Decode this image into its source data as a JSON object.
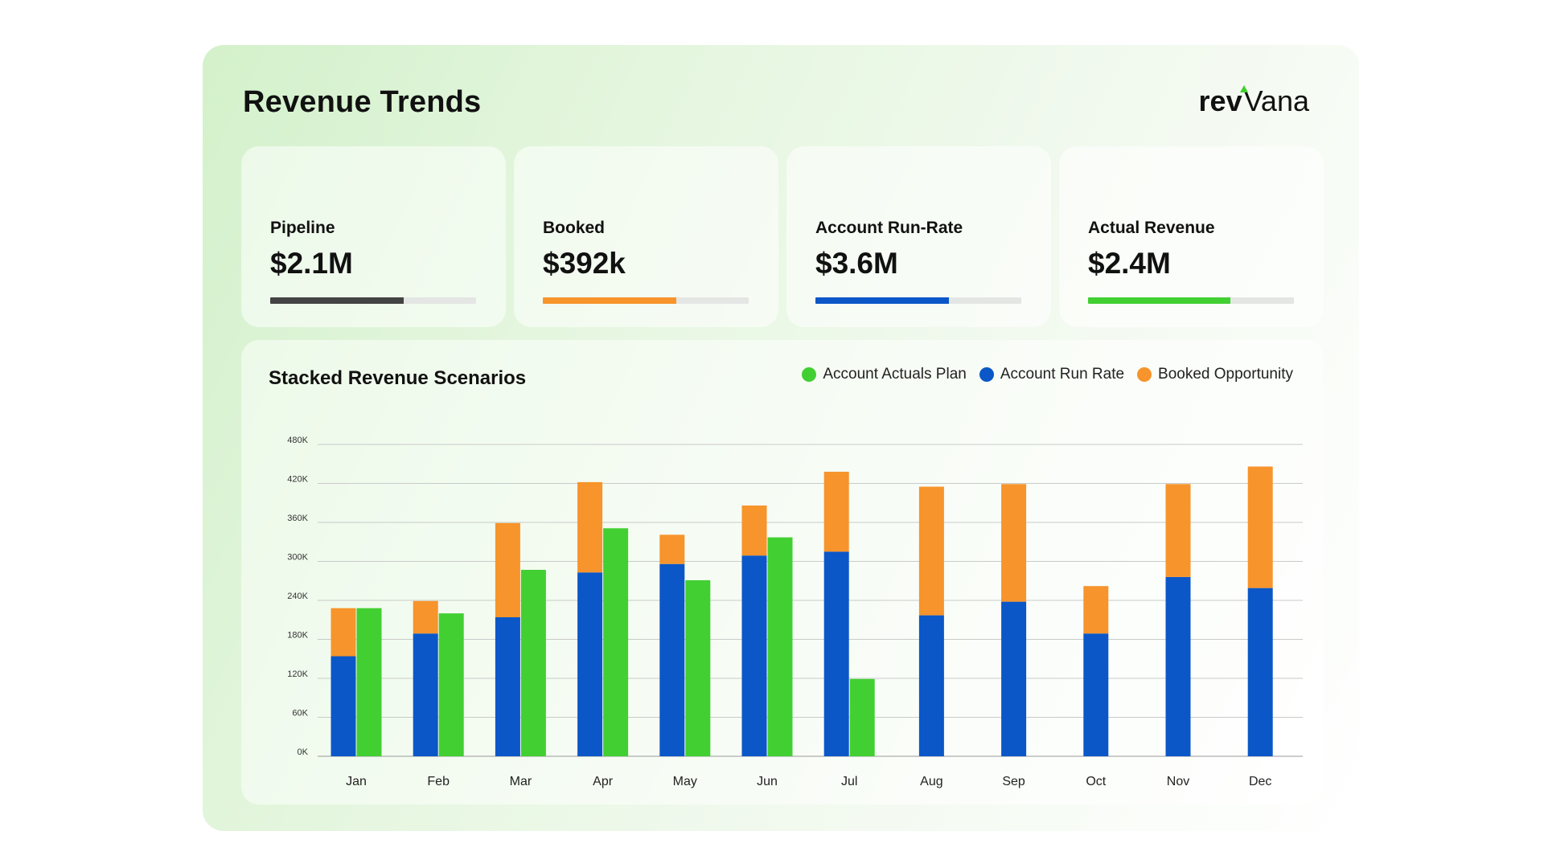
{
  "header": {
    "title": "Revenue Trends",
    "logo": {
      "part1": "rev",
      "part2": "Vana",
      "mark_color": "#3fcf2f"
    }
  },
  "kpis": [
    {
      "label": "Pipeline",
      "value": "$2.1M",
      "progress": 0.65,
      "color": "#434343"
    },
    {
      "label": "Booked",
      "value": "$392k",
      "progress": 0.65,
      "color": "#f7942b"
    },
    {
      "label": "Account Run-Rate",
      "value": "$3.6M",
      "progress": 0.65,
      "color": "#0b57c8"
    },
    {
      "label": "Actual Revenue",
      "value": "$2.4M",
      "progress": 0.69,
      "color": "#42cf32"
    }
  ],
  "chart_data": {
    "type": "bar",
    "title": "Stacked Revenue Scenarios",
    "legend_position": "top-right",
    "grid": true,
    "categories": [
      "Jan",
      "Feb",
      "Mar",
      "Apr",
      "May",
      "Jun",
      "Jul",
      "Aug",
      "Sep",
      "Oct",
      "Nov",
      "Dec"
    ],
    "ylim": [
      0,
      480000
    ],
    "y_ticks": [
      {
        "value": 0,
        "label": "0K"
      },
      {
        "value": 60000,
        "label": "60K"
      },
      {
        "value": 120000,
        "label": "120K"
      },
      {
        "value": 180000,
        "label": "180K"
      },
      {
        "value": 240000,
        "label": "240K"
      },
      {
        "value": 300000,
        "label": "300K"
      },
      {
        "value": 360000,
        "label": "360K"
      },
      {
        "value": 420000,
        "label": "420K"
      },
      {
        "value": 480000,
        "label": "480K"
      }
    ],
    "series": [
      {
        "name": "Account Run Rate",
        "color": "#0b57c8",
        "stack": "forecast",
        "values": [
          154000,
          189000,
          214000,
          283000,
          296000,
          309000,
          315000,
          217000,
          238000,
          189000,
          276000,
          259000
        ]
      },
      {
        "name": "Booked Opportunity",
        "color": "#f7942b",
        "stack": "forecast",
        "values": [
          74000,
          50000,
          145000,
          139000,
          45000,
          77000,
          123000,
          198000,
          181000,
          73000,
          143000,
          187000
        ]
      },
      {
        "name": "Account Actuals Plan",
        "color": "#42cf32",
        "stack": "actuals",
        "values": [
          228000,
          220000,
          287000,
          351000,
          271000,
          337000,
          119000,
          null,
          null,
          null,
          null,
          null
        ]
      }
    ],
    "legend": [
      {
        "name": "Account Actuals Plan",
        "color": "#42cf32"
      },
      {
        "name": "Account Run Rate",
        "color": "#0b57c8"
      },
      {
        "name": "Booked Opportunity",
        "color": "#f7942b"
      }
    ]
  }
}
